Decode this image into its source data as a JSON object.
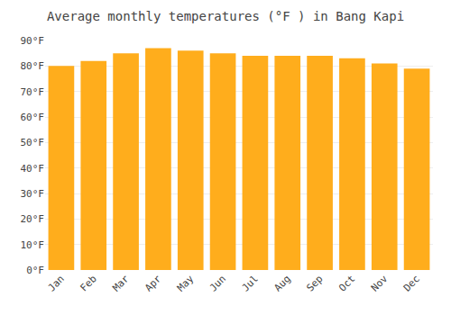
{
  "chart_data": {
    "type": "bar",
    "title": "Average monthly temperatures (°F ) in Bang Kapi",
    "categories": [
      "Jan",
      "Feb",
      "Mar",
      "Apr",
      "May",
      "Jun",
      "Jul",
      "Aug",
      "Sep",
      "Oct",
      "Nov",
      "Dec"
    ],
    "values": [
      80,
      82,
      85,
      87,
      86,
      85,
      84,
      84,
      84,
      83,
      81,
      79
    ],
    "color": "#FFAD1C",
    "ylim": [
      0,
      90
    ],
    "yticks": [
      {
        "value": 0,
        "label": "0°F"
      },
      {
        "value": 10,
        "label": "10°F"
      },
      {
        "value": 20,
        "label": "20°F"
      },
      {
        "value": 30,
        "label": "30°F"
      },
      {
        "value": 40,
        "label": "40°F"
      },
      {
        "value": 50,
        "label": "50°F"
      },
      {
        "value": 60,
        "label": "60°F"
      },
      {
        "value": 70,
        "label": "70°F"
      },
      {
        "value": 80,
        "label": "80°F"
      },
      {
        "value": 90,
        "label": "90°F"
      }
    ],
    "grid": true
  }
}
